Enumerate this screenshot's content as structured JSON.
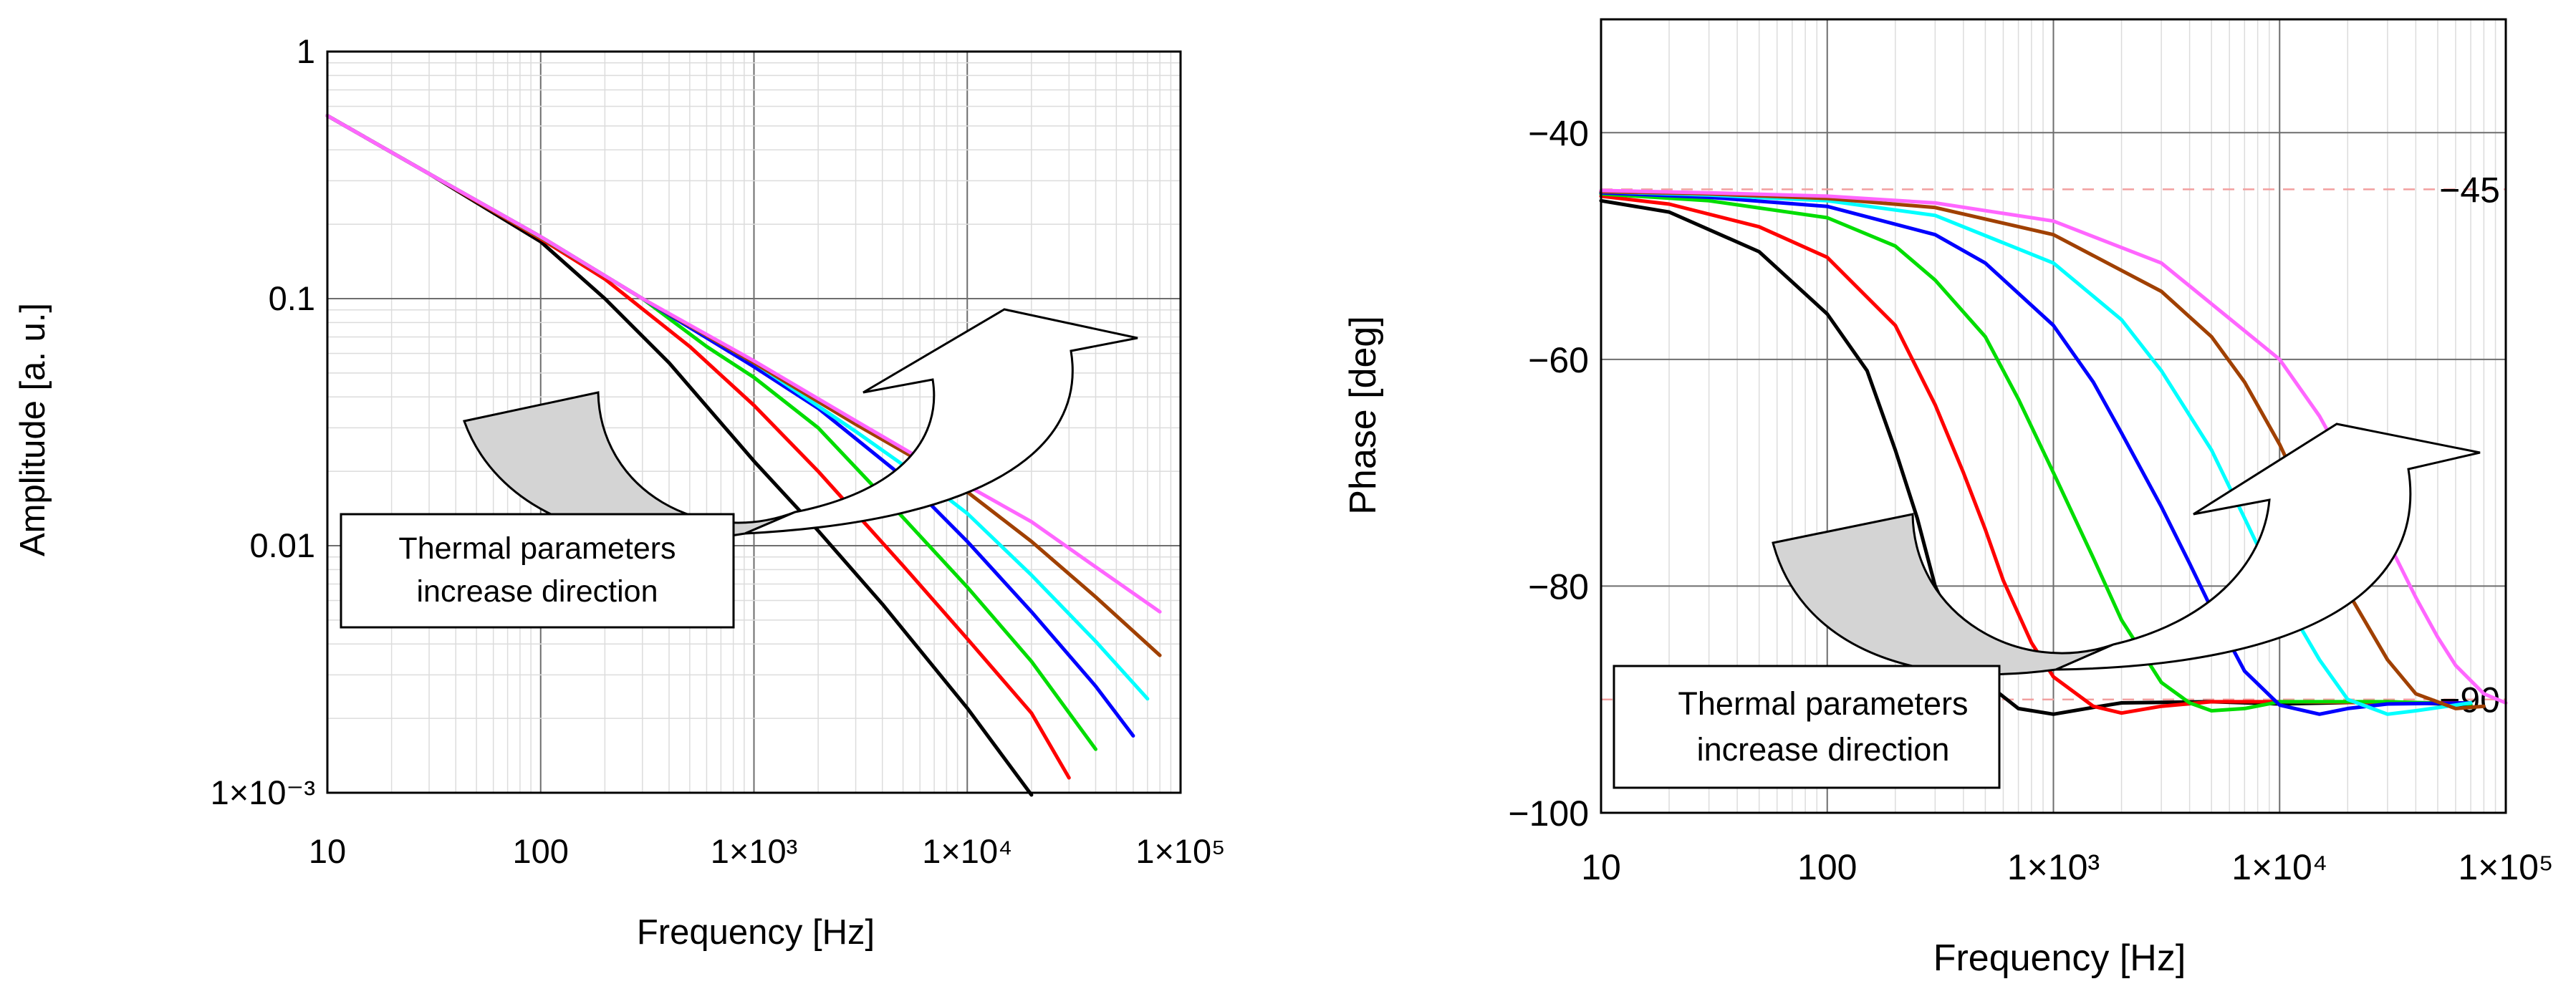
{
  "chart_data": [
    {
      "type": "line",
      "xlabel": "Frequency [Hz]",
      "ylabel": "Amplitude [a. u.]",
      "xscale": "log",
      "yscale": "log",
      "xlim": [
        10,
        100000
      ],
      "ylim": [
        0.001,
        1
      ],
      "grid": true,
      "x_tick_labels": [
        "10",
        "100",
        "1×10³",
        "1×10⁴",
        "1×10⁵"
      ],
      "y_tick_labels": [
        "1",
        "0.1",
        "0.01",
        "1×10⁻³"
      ],
      "annotation": {
        "line1": "Thermal parameters",
        "line2": "increase direction"
      },
      "series": [
        {
          "color": "#000000",
          "x": [
            10,
            30,
            100,
            200,
            400,
            1000,
            2000,
            4000,
            10000,
            20000
          ],
          "y": [
            0.55,
            0.32,
            0.17,
            0.1,
            0.055,
            0.022,
            0.0115,
            0.0058,
            0.0022,
            0.00098
          ]
        },
        {
          "color": "#ff0000",
          "x": [
            10,
            30,
            100,
            200,
            500,
            1000,
            2000,
            5000,
            10000,
            20000,
            30000
          ],
          "y": [
            0.55,
            0.32,
            0.175,
            0.12,
            0.064,
            0.037,
            0.02,
            0.0083,
            0.0042,
            0.0021,
            0.00115
          ]
        },
        {
          "color": "#00dd00",
          "x": [
            10,
            30,
            100,
            300,
            600,
            1000,
            2000,
            5000,
            10000,
            20000,
            40000
          ],
          "y": [
            0.55,
            0.32,
            0.177,
            0.1,
            0.064,
            0.048,
            0.03,
            0.013,
            0.0068,
            0.0034,
            0.0015
          ]
        },
        {
          "color": "#0000ff",
          "x": [
            10,
            30,
            100,
            300,
            1000,
            2000,
            5000,
            10000,
            20000,
            40000,
            60000
          ],
          "y": [
            0.55,
            0.32,
            0.178,
            0.1,
            0.053,
            0.036,
            0.019,
            0.0104,
            0.0054,
            0.0027,
            0.0017
          ]
        },
        {
          "color": "#00ffff",
          "x": [
            10,
            30,
            100,
            300,
            1000,
            3000,
            6000,
            10000,
            20000,
            40000,
            70000
          ],
          "y": [
            0.55,
            0.32,
            0.178,
            0.1,
            0.055,
            0.029,
            0.019,
            0.0135,
            0.0076,
            0.0041,
            0.0024
          ]
        },
        {
          "color": "#a04000",
          "x": [
            10,
            30,
            100,
            300,
            1000,
            3000,
            6000,
            10000,
            20000,
            40000,
            80000
          ],
          "y": [
            0.55,
            0.32,
            0.178,
            0.1,
            0.055,
            0.031,
            0.022,
            0.0165,
            0.0104,
            0.0062,
            0.0036
          ]
        },
        {
          "color": "#ff66ff",
          "x": [
            10,
            30,
            100,
            300,
            1000,
            3000,
            10000,
            20000,
            40000,
            80000
          ],
          "y": [
            0.55,
            0.32,
            0.178,
            0.1,
            0.056,
            0.032,
            0.0175,
            0.0125,
            0.0082,
            0.0054
          ]
        }
      ]
    },
    {
      "type": "line",
      "xlabel": "Frequency [Hz]",
      "ylabel": "Phase [deg]",
      "xscale": "log",
      "yscale": "linear",
      "xlim": [
        10,
        100000
      ],
      "ylim": [
        -100,
        -30
      ],
      "grid": true,
      "x_tick_labels": [
        "10",
        "100",
        "1×10³",
        "1×10⁴",
        "1×10⁵"
      ],
      "y_tick_labels": [
        "−40",
        "−60",
        "−80",
        "−100"
      ],
      "reference_lines": [
        {
          "value": -45,
          "label": "−45"
        },
        {
          "value": -90,
          "label": "−90"
        }
      ],
      "annotation": {
        "line1": "Thermal parameters",
        "line2": "increase direction"
      },
      "series": [
        {
          "color": "#000000",
          "x": [
            10,
            20,
            50,
            100,
            150,
            200,
            250,
            300,
            400,
            500,
            700,
            1000,
            1500,
            2000,
            5000,
            10000,
            30000,
            70000
          ],
          "y": [
            -46,
            -47,
            -50.5,
            -56,
            -61,
            -68,
            -74,
            -80,
            -85.5,
            -88.5,
            -90.8,
            -91.3,
            -90.7,
            -90.3,
            -90.2,
            -90.4,
            -90.2,
            -90.5
          ]
        },
        {
          "color": "#ff0000",
          "x": [
            10,
            20,
            50,
            100,
            200,
            300,
            400,
            500,
            600,
            800,
            1000,
            1500,
            2000,
            3000,
            5000,
            10000,
            30000,
            70000
          ],
          "y": [
            -45.6,
            -46.3,
            -48.3,
            -51,
            -57,
            -64,
            -70,
            -75,
            -79.5,
            -85,
            -88,
            -90.6,
            -91.2,
            -90.6,
            -90.2,
            -90.2,
            -90.3,
            -90.3
          ]
        },
        {
          "color": "#00dd00",
          "x": [
            10,
            30,
            100,
            200,
            300,
            500,
            700,
            1000,
            1500,
            2000,
            3000,
            4000,
            5000,
            7000,
            10000,
            30000,
            70000
          ],
          "y": [
            -45.4,
            -46,
            -47.5,
            -50,
            -53,
            -58,
            -63.5,
            -70,
            -77.5,
            -83,
            -88.5,
            -90.3,
            -91,
            -90.8,
            -90.2,
            -90.2,
            -90.4
          ]
        },
        {
          "color": "#0000ff",
          "x": [
            10,
            30,
            100,
            300,
            500,
            1000,
            1500,
            2000,
            3000,
            4000,
            5000,
            7000,
            10000,
            15000,
            20000,
            30000,
            70000
          ],
          "y": [
            -45.3,
            -45.7,
            -46.5,
            -49,
            -51.5,
            -57,
            -62,
            -66.5,
            -73,
            -78,
            -82,
            -87.5,
            -90.5,
            -91.3,
            -90.8,
            -90.4,
            -90.3
          ]
        },
        {
          "color": "#00ffff",
          "x": [
            10,
            30,
            100,
            300,
            1000,
            2000,
            3000,
            5000,
            7000,
            10000,
            15000,
            20000,
            30000,
            40000,
            70000
          ],
          "y": [
            -45.2,
            -45.5,
            -46,
            -47.3,
            -51.5,
            -56.5,
            -61,
            -68,
            -74,
            -80.5,
            -86.5,
            -90,
            -91.3,
            -91,
            -90.3
          ]
        },
        {
          "color": "#a04000",
          "x": [
            10,
            30,
            100,
            300,
            1000,
            3000,
            5000,
            7000,
            10000,
            15000,
            20000,
            30000,
            40000,
            60000,
            80000
          ],
          "y": [
            -45.2,
            -45.4,
            -45.8,
            -46.6,
            -49,
            -54,
            -58,
            -62,
            -67.5,
            -75,
            -80.5,
            -86.5,
            -89.5,
            -90.8,
            -90.6
          ]
        },
        {
          "color": "#ff66ff",
          "x": [
            10,
            30,
            100,
            300,
            1000,
            3000,
            10000,
            15000,
            20000,
            30000,
            40000,
            50000,
            60000,
            80000,
            100000
          ],
          "y": [
            -45.1,
            -45.3,
            -45.6,
            -46.2,
            -47.8,
            -51.5,
            -60,
            -65,
            -69.5,
            -76,
            -81,
            -84.5,
            -87,
            -89.5,
            -90.3
          ]
        }
      ]
    }
  ]
}
